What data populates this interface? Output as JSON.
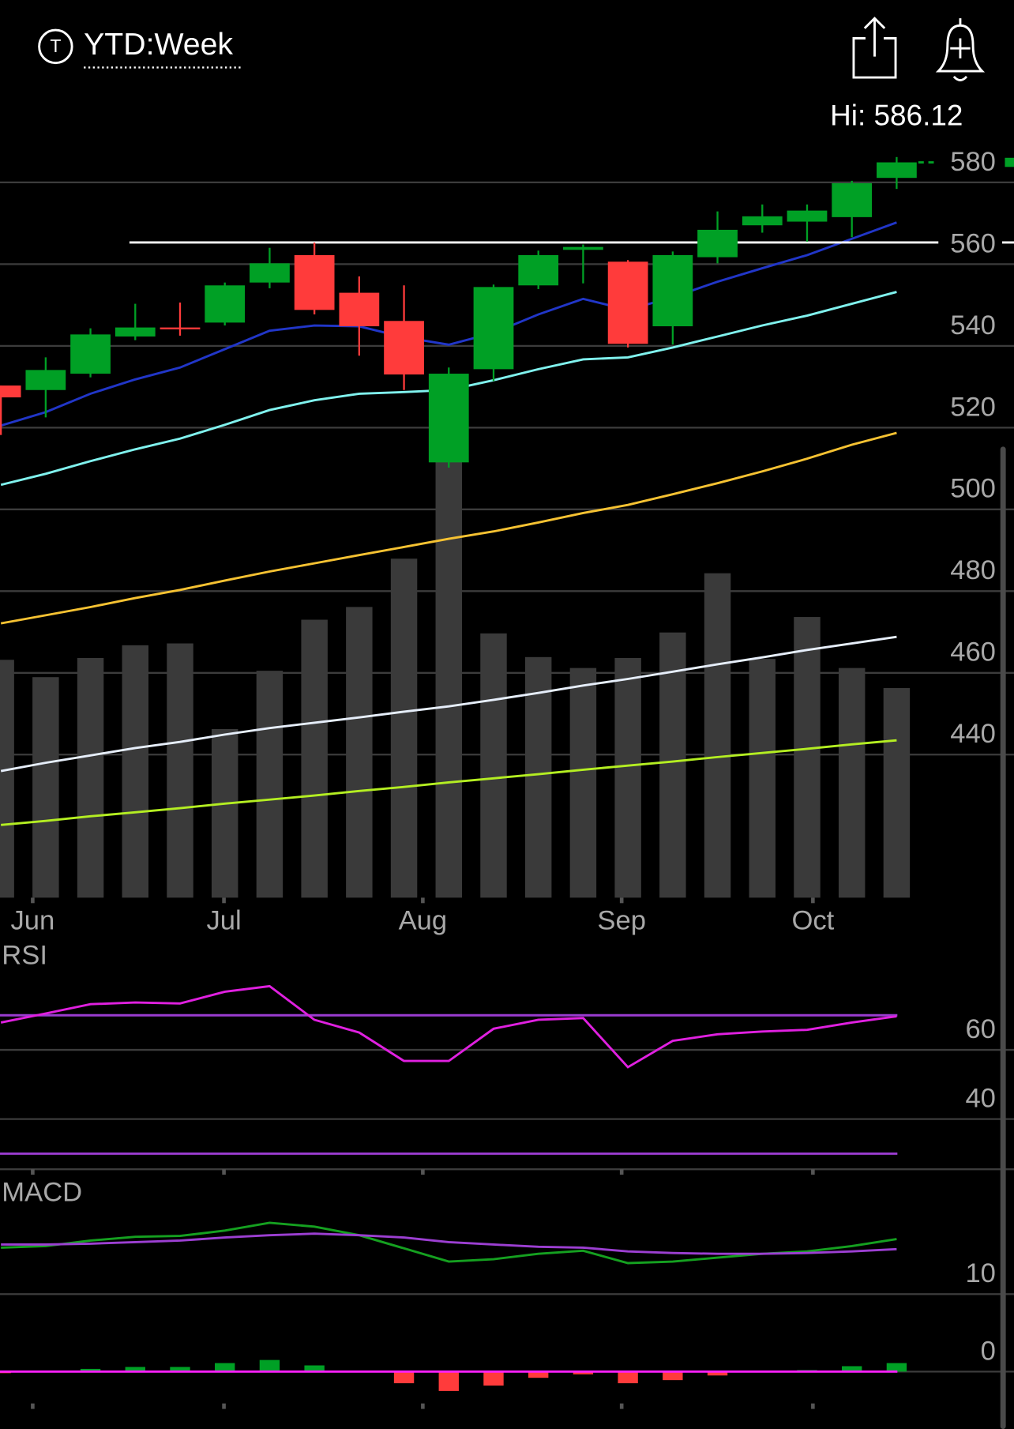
{
  "header": {
    "title": "YTD:Week",
    "hi_label": "Hi: 586.12"
  },
  "chart_data": [
    {
      "type": "candlestick",
      "categories": [
        null,
        null,
        null,
        null,
        null,
        null,
        null,
        null,
        null,
        null,
        null,
        null,
        null,
        null,
        null,
        null,
        null,
        null,
        null,
        null,
        null
      ],
      "open": [
        530.3,
        529.2,
        533.2,
        542.3,
        544.5,
        545.7,
        555.5,
        562.2,
        553.0,
        546.1,
        511.5,
        534.3,
        554.8,
        563.5,
        560.6,
        544.8,
        561.7,
        569.5,
        570.4,
        571.5,
        581.1
      ],
      "high": [
        530.3,
        537.2,
        544.3,
        550.3,
        550.6,
        555.5,
        564.0,
        565.3,
        557.0,
        554.8,
        534.7,
        555.0,
        563.3,
        564.8,
        561.0,
        563.1,
        572.9,
        574.6,
        574.6,
        580.4,
        586.2
      ],
      "low": [
        518.2,
        522.5,
        532.3,
        541.4,
        542.5,
        545.0,
        554.1,
        547.7,
        537.6,
        529.2,
        510.2,
        531.4,
        553.9,
        555.3,
        539.6,
        540.3,
        560.2,
        567.7,
        565.5,
        566.6,
        578.4
      ],
      "close": [
        527.4,
        534.1,
        542.8,
        544.5,
        544.1,
        554.8,
        560.2,
        548.8,
        544.8,
        533.0,
        533.2,
        554.4,
        562.2,
        564.2,
        540.5,
        562.2,
        568.4,
        571.7,
        573.1,
        579.8,
        584.9
      ],
      "up_color": "#00a025",
      "down_color": "#ff3b3b",
      "xlim": [
        -0.02,
        22.62
      ],
      "xticks": [
        {
          "value": 0.71,
          "label": "Jun"
        },
        {
          "value": 4.98,
          "label": "Jul"
        },
        {
          "value": 9.42,
          "label": "Aug"
        },
        {
          "value": 13.86,
          "label": "Sep"
        },
        {
          "value": 18.13,
          "label": "Oct"
        }
      ],
      "ylim": [
        405,
        593.4
      ],
      "yticks": [
        580,
        560,
        540,
        520,
        500,
        480,
        460,
        440
      ],
      "grid": true,
      "volume": {
        "values": [
          261,
          242,
          263,
          277,
          279,
          185,
          249,
          305,
          319,
          372,
          485,
          290,
          264,
          252,
          263,
          291,
          356,
          262,
          308,
          252,
          230
        ],
        "lim": [
          0,
          500
        ],
        "color": "#3a3a3a"
      },
      "series": [
        {
          "color": "#2136c8",
          "values": [
            520.5,
            523.8,
            528.3,
            531.8,
            534.7,
            539.2,
            543.7,
            545.0,
            544.8,
            542.1,
            540.3,
            543.2,
            547.7,
            551.5,
            548.8,
            551.9,
            555.7,
            559.0,
            562.2,
            566.2,
            570.2
          ]
        },
        {
          "color": "#80f2ee",
          "values": [
            506.0,
            508.7,
            511.8,
            514.7,
            517.3,
            520.7,
            524.3,
            526.7,
            528.3,
            528.7,
            529.2,
            531.6,
            534.3,
            536.7,
            537.2,
            539.6,
            542.3,
            545.0,
            547.4,
            550.3,
            553.2
          ]
        },
        {
          "color": "#f6c232",
          "values": [
            472.1,
            474.1,
            476.1,
            478.3,
            480.3,
            482.6,
            484.8,
            486.8,
            488.8,
            490.8,
            492.8,
            494.6,
            496.8,
            499.1,
            501.1,
            503.7,
            506.4,
            509.3,
            512.4,
            515.8,
            518.7
          ]
        },
        {
          "color": "#e6eefa",
          "values": [
            436.0,
            438.0,
            439.8,
            441.6,
            443.1,
            444.9,
            446.5,
            447.8,
            449.1,
            450.5,
            451.8,
            453.4,
            455.1,
            456.9,
            458.5,
            460.3,
            462.1,
            463.8,
            465.6,
            467.2,
            468.8
          ]
        },
        {
          "color": "#b4ee22",
          "values": [
            422.8,
            423.8,
            424.9,
            425.9,
            426.9,
            428.0,
            429.0,
            430.0,
            431.1,
            432.1,
            433.2,
            434.2,
            435.2,
            436.3,
            437.3,
            438.3,
            439.4,
            440.4,
            441.4,
            442.5,
            443.5
          ]
        }
      ],
      "level_line": {
        "value": 565.3,
        "start": 2.87,
        "color": "#ffffff"
      }
    },
    {
      "type": "line",
      "label": "RSI",
      "series": [
        {
          "color": "#e020e0",
          "values": [
            67.9,
            70.5,
            73.2,
            73.7,
            73.4,
            76.8,
            78.4,
            68.7,
            65.0,
            56.8,
            56.8,
            66.1,
            68.7,
            69.2,
            55.0,
            62.6,
            64.5,
            65.3,
            65.8,
            67.9,
            69.7
          ]
        }
      ],
      "reference_lines": [
        70,
        30
      ],
      "reference_color": "#9a3ccf",
      "ylim": [
        25.5,
        89.5
      ],
      "yticks": [
        60,
        40
      ],
      "grid": true
    },
    {
      "type": "macd",
      "label": "MACD",
      "series": [
        {
          "color": "#15a020",
          "values": [
            16.0,
            16.2,
            16.9,
            17.4,
            17.5,
            18.2,
            19.2,
            18.7,
            17.6,
            15.9,
            14.2,
            14.5,
            15.2,
            15.6,
            14.0,
            14.2,
            14.7,
            15.2,
            15.5,
            16.2,
            17.1
          ]
        },
        {
          "color": "#9c3fd2",
          "values": [
            16.4,
            16.4,
            16.5,
            16.7,
            16.9,
            17.3,
            17.6,
            17.8,
            17.6,
            17.3,
            16.7,
            16.4,
            16.1,
            16.0,
            15.5,
            15.3,
            15.2,
            15.2,
            15.3,
            15.5,
            15.8
          ]
        }
      ],
      "histogram": {
        "values": [
          -0.2,
          0,
          0.35,
          0.6,
          0.6,
          1.1,
          1.5,
          0.8,
          0,
          -1.5,
          -2.5,
          -1.8,
          -0.8,
          -0.35,
          -1.5,
          -1.1,
          -0.5,
          0,
          0.2,
          0.7,
          1.1
        ],
        "up_color": "#00a025",
        "down_color": "#ff3b3b"
      },
      "zero_color": "#ff20ff",
      "ylim": [
        -7.4,
        24.7
      ],
      "yticks": [
        10,
        0
      ],
      "grid": true
    }
  ]
}
